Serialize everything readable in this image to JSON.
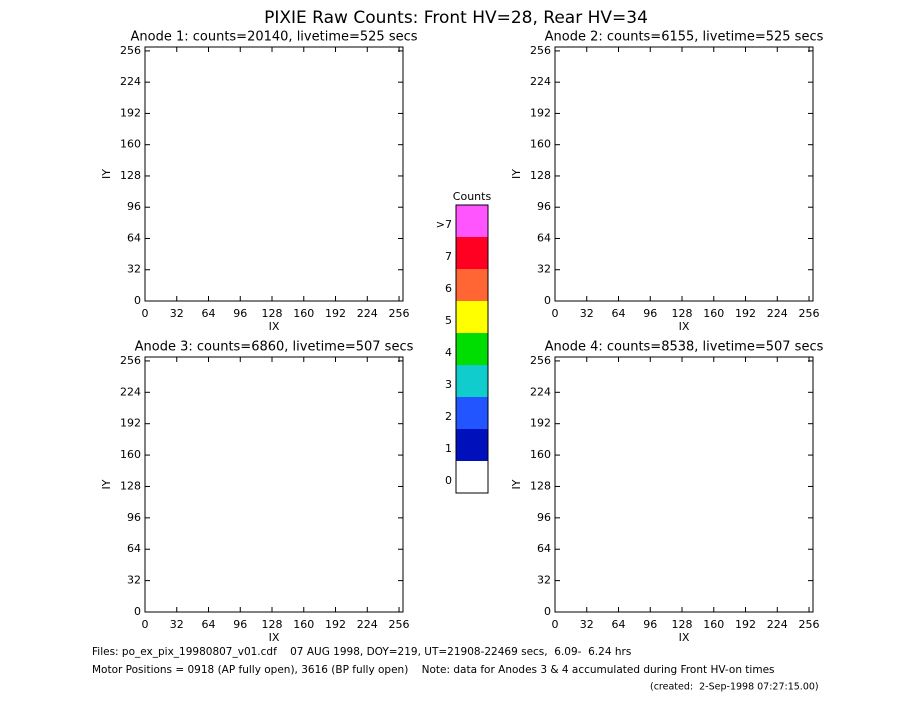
{
  "title": "PIXIE Raw Counts:  Front HV=28, Rear HV=34",
  "chart_data": [
    {
      "type": "heatmap",
      "title": "Anode 1: counts=20140, livetime=525 secs",
      "xlabel": "IX",
      "ylabel": "IY",
      "xlim": [
        0,
        260
      ],
      "ylim": [
        0,
        260
      ],
      "xticks": [
        0,
        32,
        64,
        96,
        128,
        160,
        192,
        224,
        256
      ],
      "yticks": [
        0,
        32,
        64,
        96,
        128,
        160,
        192,
        224,
        256
      ]
    },
    {
      "type": "heatmap",
      "title": "Anode 2: counts=6155, livetime=525 secs",
      "xlabel": "IX",
      "ylabel": "IY",
      "xlim": [
        0,
        260
      ],
      "ylim": [
        0,
        260
      ],
      "xticks": [
        0,
        32,
        64,
        96,
        128,
        160,
        192,
        224,
        256
      ],
      "yticks": [
        0,
        32,
        64,
        96,
        128,
        160,
        192,
        224,
        256
      ]
    },
    {
      "type": "heatmap",
      "title": "Anode 3: counts=6860, livetime=507 secs",
      "xlabel": "IX",
      "ylabel": "IY",
      "xlim": [
        0,
        260
      ],
      "ylim": [
        0,
        260
      ],
      "xticks": [
        0,
        32,
        64,
        96,
        128,
        160,
        192,
        224,
        256
      ],
      "yticks": [
        0,
        32,
        64,
        96,
        128,
        160,
        192,
        224,
        256
      ]
    },
    {
      "type": "heatmap",
      "title": "Anode 4: counts=8538, livetime=507 secs",
      "xlabel": "IX",
      "ylabel": "IY",
      "xlim": [
        0,
        260
      ],
      "ylim": [
        0,
        260
      ],
      "xticks": [
        0,
        32,
        64,
        96,
        128,
        160,
        192,
        224,
        256
      ],
      "yticks": [
        0,
        32,
        64,
        96,
        128,
        160,
        192,
        224,
        256
      ]
    }
  ],
  "colorbar": {
    "title": "Counts",
    "levels": [
      {
        "label": ">7",
        "color": "#ff55ff"
      },
      {
        "label": "7",
        "color": "#ff0022"
      },
      {
        "label": "6",
        "color": "#ff6633"
      },
      {
        "label": "5",
        "color": "#ffff00"
      },
      {
        "label": "4",
        "color": "#00dd00"
      },
      {
        "label": "3",
        "color": "#11cccc"
      },
      {
        "label": "2",
        "color": "#2255ff"
      },
      {
        "label": "1",
        "color": "#0011bb"
      },
      {
        "label": "0",
        "color": "#ffffff"
      }
    ]
  },
  "footer": {
    "files": "Files: po_ex_pix_19980807_v01.cdf    07 AUG 1998, DOY=219, UT=21908-22469 secs,  6.09-  6.24 hrs",
    "motor": "Motor Positions = 0918 (AP fully open), 3616 (BP fully open)    Note: data for Anodes 3 & 4 accumulated during Front HV-on times",
    "created": "(created:  2-Sep-1998 07:27:15.00)"
  }
}
